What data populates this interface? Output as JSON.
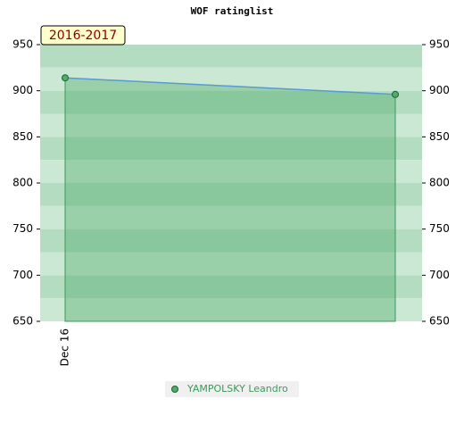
{
  "chart_data": {
    "type": "line",
    "title": "WOF ratinglist",
    "annotation": "2016-2017",
    "categories": [
      "Dec 16",
      null
    ],
    "series": [
      {
        "name": "YAMPOLSKY Leandro",
        "color": "#5b9bd5",
        "values": [
          914,
          896
        ]
      }
    ],
    "ylim": [
      650,
      950
    ],
    "yticks": [
      650,
      700,
      750,
      800,
      850,
      900,
      950
    ],
    "y2lim": [
      650,
      950
    ],
    "y2ticks": [
      650,
      700,
      750,
      800,
      850,
      900,
      950
    ],
    "grid": true
  }
}
